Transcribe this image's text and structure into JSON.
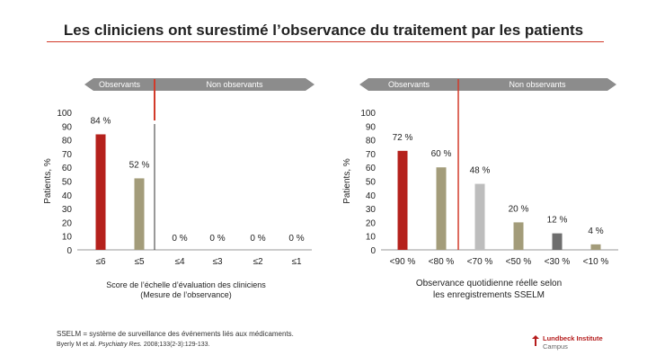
{
  "title": "Les cliniciens ont surestimé l’observance du traitement par les patients",
  "colors": {
    "accent": "#d23a2a",
    "arrow": "#8c8c8c",
    "bar_red": "#b5211c",
    "bar_olive": "#a39c7a",
    "bar_gray": "#bdbdbd",
    "bar_dark": "#6e6e6e"
  },
  "chart_data": [
    {
      "type": "bar",
      "title": "",
      "header_left": "Observants",
      "header_right": "Non observants",
      "xlabel": "Score de l’échelle d’évaluation des cliniciens (Mesure de l’observance)",
      "xlabel_line1": "Score de l’échelle d’évaluation des cliniciens",
      "xlabel_line2": "(Mesure de l’observance)",
      "ylabel": "Patients, %",
      "ylim": [
        0,
        100
      ],
      "yticks": [
        "0",
        "10",
        "20",
        "30",
        "40",
        "50",
        "60",
        "70",
        "80",
        "90",
        "100"
      ],
      "categories": [
        "≤6",
        "≤5",
        "≤4",
        "≤3",
        "≤2",
        "≤1"
      ],
      "values": [
        84,
        52,
        0,
        0,
        0,
        0
      ],
      "labels": [
        "84 %",
        "52 %",
        "0 %",
        "0 %",
        "0 %",
        "0 %"
      ],
      "bar_colors": [
        "bar_red",
        "bar_olive",
        "bar_olive",
        "bar_olive",
        "bar_olive",
        "bar_olive"
      ]
    },
    {
      "type": "bar",
      "title": "",
      "header_left": "Observants",
      "header_right": "Non observants",
      "xlabel": "Observance quotidienne réelle selon les enregistrements SSELM",
      "xlabel_line1": "Observance quotidienne réelle selon",
      "xlabel_line2": "les enregistrements SSELM",
      "ylabel": "Patients, %",
      "ylim": [
        0,
        100
      ],
      "yticks": [
        "0",
        "10",
        "20",
        "30",
        "40",
        "50",
        "60",
        "70",
        "80",
        "90",
        "100"
      ],
      "categories": [
        "<90 %",
        "<80 %",
        "<70 %",
        "<50 %",
        "<30 %",
        "<10 %"
      ],
      "values": [
        72,
        60,
        48,
        20,
        12,
        4
      ],
      "labels": [
        "72 %",
        "60 %",
        "48 %",
        "20 %",
        "12 %",
        "4 %"
      ],
      "bar_colors": [
        "bar_red",
        "bar_olive",
        "bar_gray",
        "bar_olive",
        "bar_dark",
        "bar_olive"
      ]
    }
  ],
  "footnote1": "SSELM = système de surveillance des événements liés aux médicaments.",
  "footnote2_prefix": "Byerly M et al.",
  "footnote2_journal": "Psychiatry Res.",
  "footnote2_suffix": "2008;133(2-3):129-133.",
  "brand_name": "Lundbeck Institute",
  "brand_sub": "Campus"
}
